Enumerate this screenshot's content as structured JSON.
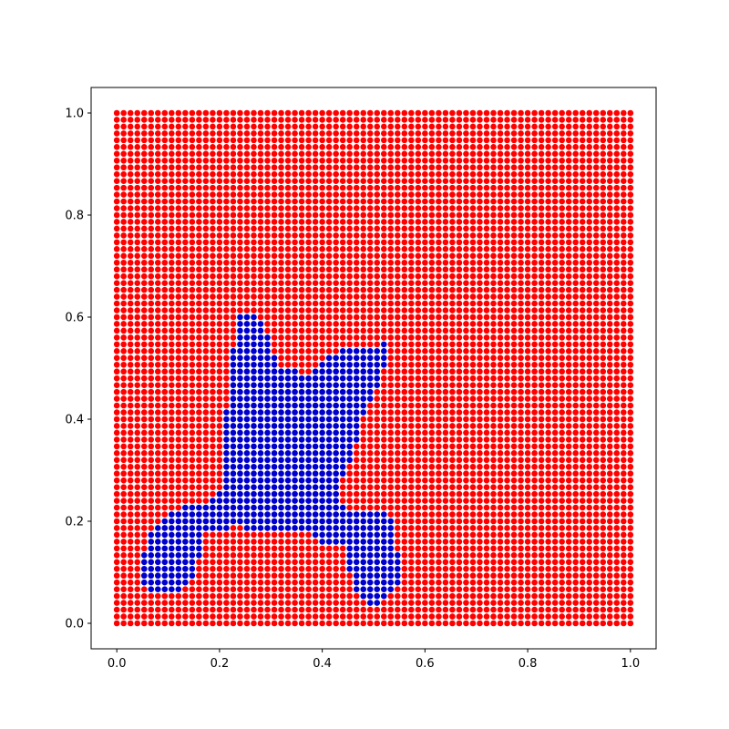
{
  "chart_data": {
    "type": "scatter",
    "title": "",
    "xlabel": "",
    "ylabel": "",
    "xlim": [
      -0.05,
      1.05
    ],
    "ylim": [
      -0.05,
      1.05
    ],
    "grid": false,
    "legend": "none",
    "grid_spacing": 0.0133,
    "points_per_side": 76,
    "xticks": [
      0.0,
      0.2,
      0.4,
      0.6,
      0.8,
      1.0
    ],
    "xtick_labels": [
      "0.0",
      "0.2",
      "0.4",
      "0.6",
      "0.8",
      "1.0"
    ],
    "yticks": [
      0.0,
      0.2,
      0.4,
      0.6,
      0.8,
      1.0
    ],
    "ytick_labels": [
      "0.0",
      "0.2",
      "0.4",
      "0.6",
      "0.8",
      "1.0"
    ],
    "series": [
      {
        "color": "#ff0000",
        "description": "all grid points outside the blue region"
      },
      {
        "color": "#0000cc",
        "description": "grid points inside region",
        "region_polygon": [
          [
            0.24,
            0.612
          ],
          [
            0.262,
            0.612
          ],
          [
            0.285,
            0.585
          ],
          [
            0.3,
            0.545
          ],
          [
            0.315,
            0.5
          ],
          [
            0.37,
            0.49
          ],
          [
            0.4,
            0.51
          ],
          [
            0.44,
            0.54
          ],
          [
            0.525,
            0.548
          ],
          [
            0.525,
            0.508
          ],
          [
            0.5,
            0.445
          ],
          [
            0.48,
            0.4
          ],
          [
            0.46,
            0.33
          ],
          [
            0.43,
            0.262
          ],
          [
            0.425,
            0.248
          ],
          [
            0.445,
            0.22
          ],
          [
            0.53,
            0.22
          ],
          [
            0.545,
            0.15
          ],
          [
            0.56,
            0.085
          ],
          [
            0.52,
            0.04
          ],
          [
            0.49,
            0.035
          ],
          [
            0.455,
            0.08
          ],
          [
            0.45,
            0.13
          ],
          [
            0.445,
            0.16
          ],
          [
            0.4,
            0.16
          ],
          [
            0.38,
            0.175
          ],
          [
            0.27,
            0.175
          ],
          [
            0.235,
            0.19
          ],
          [
            0.17,
            0.175
          ],
          [
            0.155,
            0.11
          ],
          [
            0.14,
            0.075
          ],
          [
            0.125,
            0.06
          ],
          [
            0.065,
            0.06
          ],
          [
            0.05,
            0.08
          ],
          [
            0.055,
            0.16
          ],
          [
            0.07,
            0.19
          ],
          [
            0.095,
            0.21
          ],
          [
            0.13,
            0.23
          ],
          [
            0.18,
            0.235
          ],
          [
            0.205,
            0.27
          ],
          [
            0.21,
            0.37
          ],
          [
            0.215,
            0.45
          ],
          [
            0.225,
            0.52
          ],
          [
            0.23,
            0.58
          ]
        ]
      }
    ]
  }
}
